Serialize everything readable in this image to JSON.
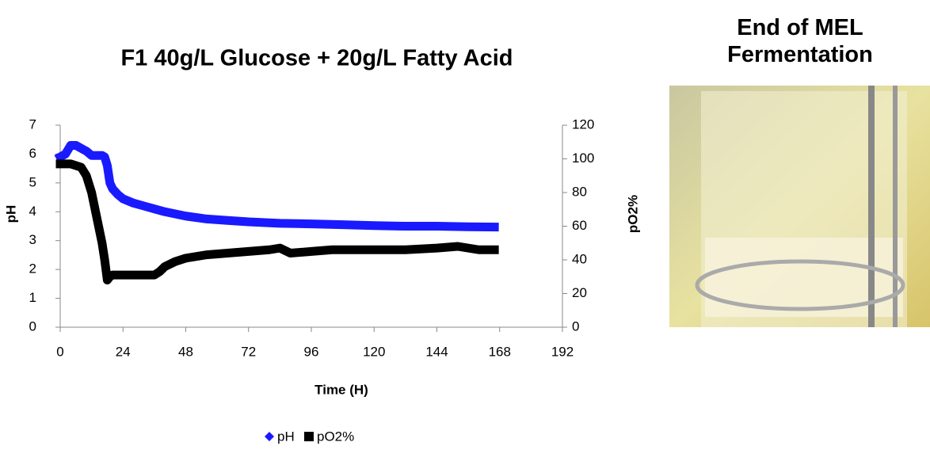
{
  "chart_data": {
    "type": "line",
    "title": "F1 40g/L Glucose + 20g/L Fatty Acid",
    "x_label": "Time (H)",
    "y_label": "pH",
    "y2_label": "pO2%",
    "xlim": [
      0,
      192
    ],
    "xticks": [
      0,
      24,
      48,
      72,
      96,
      120,
      144,
      168,
      192
    ],
    "ylim": [
      0,
      7
    ],
    "yticks": [
      0,
      1,
      2,
      3,
      4,
      5,
      6,
      7
    ],
    "y2lim": [
      0,
      120
    ],
    "y2ticks": [
      0,
      20,
      40,
      60,
      80,
      100,
      120
    ],
    "legend": "bottom",
    "series": [
      {
        "name": "pH",
        "color": "#1a1aff",
        "marker": "diamond",
        "x": [
          0,
          2,
          4,
          6,
          8,
          10,
          12,
          14,
          16,
          17,
          18,
          19,
          20,
          22,
          24,
          28,
          32,
          36,
          40,
          48,
          56,
          64,
          72,
          84,
          96,
          108,
          120,
          132,
          144,
          156,
          166
        ],
        "values": [
          5.9,
          6.0,
          6.3,
          6.3,
          6.2,
          6.1,
          5.95,
          5.95,
          5.95,
          5.9,
          5.6,
          5.0,
          4.8,
          4.6,
          4.45,
          4.3,
          4.2,
          4.1,
          4.0,
          3.85,
          3.75,
          3.7,
          3.65,
          3.6,
          3.58,
          3.55,
          3.52,
          3.5,
          3.5,
          3.48,
          3.47
        ]
      },
      {
        "name": "pO2%",
        "color": "#000000",
        "marker": "square",
        "axis": "y2",
        "x": [
          0,
          4,
          8,
          10,
          12,
          14,
          16,
          17,
          18,
          19,
          20,
          24,
          32,
          36,
          38,
          40,
          44,
          48,
          56,
          64,
          72,
          80,
          84,
          88,
          96,
          104,
          112,
          120,
          132,
          144,
          152,
          160,
          166
        ],
        "values": [
          97,
          97,
          95,
          90,
          80,
          65,
          50,
          40,
          28,
          30,
          31,
          31,
          31,
          31,
          33,
          36,
          39,
          41,
          43,
          44,
          45,
          46,
          47,
          44,
          45,
          46,
          46,
          46,
          46,
          47,
          48,
          46,
          46
        ]
      }
    ]
  },
  "image": {
    "caption": "End of MEL Fermentation"
  }
}
